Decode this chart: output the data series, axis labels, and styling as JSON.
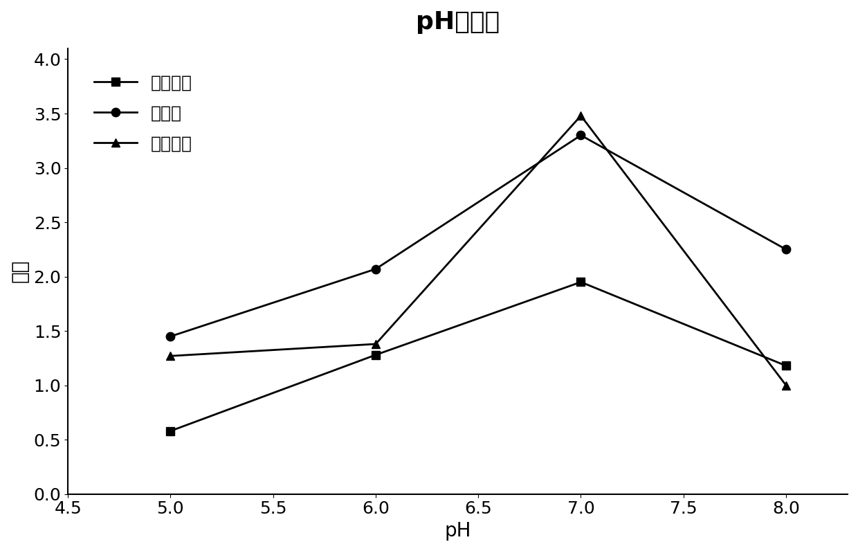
{
  "title": "pH的影响",
  "xlabel": "pH",
  "ylabel": "峰高",
  "xlim": [
    4.5,
    8.3
  ],
  "ylim": [
    0,
    4.1
  ],
  "xticks": [
    4.5,
    5.0,
    5.5,
    6.0,
    6.5,
    7.0,
    7.5,
    8.0
  ],
  "yticks": [
    0,
    0.5,
    1.0,
    1.5,
    2.0,
    2.5,
    3.0,
    3.5,
    4.0
  ],
  "x": [
    5,
    6,
    7,
    8
  ],
  "series": [
    {
      "label": "邻苯二酚",
      "values": [
        0.58,
        1.28,
        1.95,
        1.18
      ],
      "marker": "s",
      "color": "#000000",
      "linewidth": 2,
      "markersize": 9
    },
    {
      "label": "对甲酚",
      "values": [
        1.45,
        2.07,
        3.3,
        2.25
      ],
      "marker": "o",
      "color": "#000000",
      "linewidth": 2,
      "markersize": 9
    },
    {
      "label": "对硝基酚",
      "values": [
        1.27,
        1.38,
        3.48,
        1.0
      ],
      "marker": "^",
      "color": "#000000",
      "linewidth": 2,
      "markersize": 9
    }
  ],
  "title_fontsize": 26,
  "label_fontsize": 20,
  "tick_fontsize": 18,
  "legend_fontsize": 18
}
